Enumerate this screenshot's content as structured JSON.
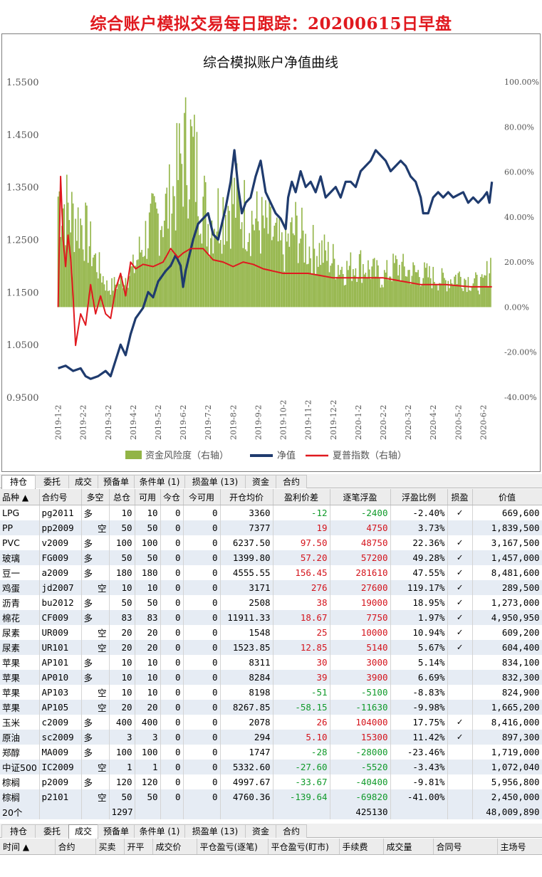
{
  "page_title": "综合账户模拟交易每日跟踪：20200615日早盘",
  "chart_data": {
    "type": "combo",
    "title": "综合模拟账户净值曲线",
    "left_axis": {
      "ticks": [
        "1.5500",
        "1.4500",
        "1.3500",
        "1.2500",
        "1.1500",
        "1.0500",
        "0.9500"
      ],
      "min": 0.95,
      "max": 1.55
    },
    "right_axis": {
      "ticks": [
        "100.00%",
        "80.00%",
        "60.00%",
        "40.00%",
        "20.00%",
        "0.00%",
        "-20.00%",
        "-40.00%"
      ],
      "min": -40,
      "max": 100
    },
    "x_labels": [
      "2019-1-2",
      "2019-2-2",
      "2019-3-2",
      "2019-4-2",
      "2019-5-2",
      "2019-6-2",
      "2019-7-2",
      "2019-8-2",
      "2019-9-2",
      "2019-10-2",
      "2019-11-2",
      "2019-12-2",
      "2020-1-2",
      "2020-2-2",
      "2020-3-2",
      "2020-4-2",
      "2020-5-2",
      "2020-6-2"
    ],
    "legend": [
      "资金风险度（右轴）",
      "净值",
      "夏普指数（右轴）"
    ],
    "series": [
      {
        "name": "净值",
        "axis": "left",
        "color": "#1f3b6e",
        "points": [
          [
            0,
            1.005
          ],
          [
            0.3,
            1.01
          ],
          [
            0.6,
            1.0
          ],
          [
            0.9,
            1.005
          ],
          [
            1.1,
            0.99
          ],
          [
            1.3,
            0.985
          ],
          [
            1.6,
            0.99
          ],
          [
            1.9,
            1.0
          ],
          [
            2.1,
            0.99
          ],
          [
            2.3,
            1.02
          ],
          [
            2.5,
            1.05
          ],
          [
            2.7,
            1.03
          ],
          [
            2.9,
            1.07
          ],
          [
            3.1,
            1.1
          ],
          [
            3.4,
            1.12
          ],
          [
            3.6,
            1.15
          ],
          [
            3.8,
            1.14
          ],
          [
            4.0,
            1.17
          ],
          [
            4.3,
            1.19
          ],
          [
            4.5,
            1.2
          ],
          [
            4.7,
            1.22
          ],
          [
            4.9,
            1.2
          ],
          [
            5.0,
            1.16
          ],
          [
            5.1,
            1.19
          ],
          [
            5.2,
            1.21
          ],
          [
            5.4,
            1.25
          ],
          [
            5.6,
            1.28
          ],
          [
            5.8,
            1.29
          ],
          [
            6.0,
            1.3
          ],
          [
            6.2,
            1.26
          ],
          [
            6.4,
            1.25
          ],
          [
            6.5,
            1.27
          ],
          [
            6.7,
            1.31
          ],
          [
            6.9,
            1.36
          ],
          [
            7.05,
            1.42
          ],
          [
            7.2,
            1.35
          ],
          [
            7.35,
            1.3
          ],
          [
            7.5,
            1.32
          ],
          [
            7.7,
            1.33
          ],
          [
            7.9,
            1.37
          ],
          [
            8.1,
            1.4
          ],
          [
            8.3,
            1.34
          ],
          [
            8.5,
            1.32
          ],
          [
            8.7,
            1.3
          ],
          [
            8.9,
            1.29
          ],
          [
            9.1,
            1.27
          ],
          [
            9.2,
            1.33
          ],
          [
            9.35,
            1.36
          ],
          [
            9.5,
            1.34
          ],
          [
            9.7,
            1.38
          ],
          [
            9.9,
            1.35
          ],
          [
            10.1,
            1.36
          ],
          [
            10.3,
            1.34
          ],
          [
            10.5,
            1.37
          ],
          [
            10.7,
            1.33
          ],
          [
            10.9,
            1.34
          ],
          [
            11.1,
            1.35
          ],
          [
            11.3,
            1.33
          ],
          [
            11.5,
            1.36
          ],
          [
            11.7,
            1.36
          ],
          [
            11.9,
            1.35
          ],
          [
            12.1,
            1.38
          ],
          [
            12.3,
            1.39
          ],
          [
            12.5,
            1.4
          ],
          [
            12.7,
            1.42
          ],
          [
            12.9,
            1.41
          ],
          [
            13.1,
            1.4
          ],
          [
            13.3,
            1.38
          ],
          [
            13.5,
            1.39
          ],
          [
            13.7,
            1.4
          ],
          [
            13.9,
            1.39
          ],
          [
            14.1,
            1.37
          ],
          [
            14.3,
            1.36
          ],
          [
            14.5,
            1.33
          ],
          [
            14.6,
            1.3
          ],
          [
            14.8,
            1.3
          ],
          [
            15.0,
            1.33
          ],
          [
            15.2,
            1.34
          ],
          [
            15.4,
            1.33
          ],
          [
            15.6,
            1.34
          ],
          [
            15.8,
            1.33
          ],
          [
            16.0,
            1.335
          ],
          [
            16.2,
            1.34
          ],
          [
            16.4,
            1.32
          ],
          [
            16.6,
            1.33
          ],
          [
            16.8,
            1.32
          ],
          [
            17.0,
            1.33
          ],
          [
            17.15,
            1.34
          ],
          [
            17.25,
            1.32
          ],
          [
            17.35,
            1.36
          ]
        ]
      },
      {
        "name": "夏普指数（右轴）",
        "axis": "right",
        "color": "#e0191f",
        "points": [
          [
            0,
            0
          ],
          [
            0.1,
            58
          ],
          [
            0.2,
            30
          ],
          [
            0.3,
            18
          ],
          [
            0.4,
            32
          ],
          [
            0.5,
            22
          ],
          [
            0.6,
            5
          ],
          [
            0.7,
            -17
          ],
          [
            0.9,
            -3
          ],
          [
            1.1,
            -8
          ],
          [
            1.3,
            10
          ],
          [
            1.5,
            -3
          ],
          [
            1.7,
            5
          ],
          [
            1.9,
            -3
          ],
          [
            2.1,
            -5
          ],
          [
            2.3,
            8
          ],
          [
            2.5,
            15
          ],
          [
            2.7,
            5
          ],
          [
            2.9,
            20
          ],
          [
            3.1,
            17
          ],
          [
            3.4,
            19
          ],
          [
            3.8,
            18
          ],
          [
            4.2,
            20
          ],
          [
            4.5,
            26
          ],
          [
            4.8,
            22
          ],
          [
            5.0,
            24
          ],
          [
            5.3,
            26
          ],
          [
            5.8,
            26
          ],
          [
            6.2,
            21
          ],
          [
            6.6,
            20
          ],
          [
            7.0,
            18
          ],
          [
            7.4,
            20
          ],
          [
            7.8,
            19
          ],
          [
            8.2,
            17
          ],
          [
            8.6,
            16
          ],
          [
            9.0,
            15
          ],
          [
            9.5,
            15
          ],
          [
            10,
            15
          ],
          [
            10.5,
            14
          ],
          [
            11,
            13
          ],
          [
            11.5,
            13
          ],
          [
            12,
            13
          ],
          [
            12.5,
            13
          ],
          [
            13,
            13
          ],
          [
            13.5,
            12
          ],
          [
            14,
            11
          ],
          [
            14.5,
            10
          ],
          [
            15,
            10
          ],
          [
            15.5,
            10
          ],
          [
            16,
            9.5
          ],
          [
            16.5,
            9
          ],
          [
            17,
            9
          ],
          [
            17.35,
            9
          ]
        ]
      }
    ],
    "risk_bars": {
      "name": "资金风险度（右轴）",
      "axis": "right",
      "color": "#92b446",
      "profile": [
        [
          0,
          60
        ],
        [
          0.5,
          50
        ],
        [
          1,
          44
        ],
        [
          1.5,
          25
        ],
        [
          2,
          10
        ],
        [
          2.5,
          14
        ],
        [
          3,
          20
        ],
        [
          3.5,
          38
        ],
        [
          4,
          48
        ],
        [
          4.5,
          55
        ],
        [
          5,
          82
        ],
        [
          5.3,
          85
        ],
        [
          5.6,
          70
        ],
        [
          6,
          45
        ],
        [
          6.5,
          52
        ],
        [
          7,
          58
        ],
        [
          7.5,
          50
        ],
        [
          8,
          45
        ],
        [
          8.5,
          40
        ],
        [
          9,
          30
        ],
        [
          9.5,
          42
        ],
        [
          10,
          32
        ],
        [
          10.5,
          30
        ],
        [
          11,
          25
        ],
        [
          11.5,
          20
        ],
        [
          12,
          24
        ],
        [
          12.5,
          20
        ],
        [
          13,
          16
        ],
        [
          13.5,
          22
        ],
        [
          14,
          19
        ],
        [
          14.5,
          18
        ],
        [
          15,
          16
        ],
        [
          15.5,
          14
        ],
        [
          16,
          17
        ],
        [
          16.5,
          14
        ],
        [
          17,
          12
        ],
        [
          17.35,
          26
        ]
      ]
    }
  },
  "tabs_top": [
    {
      "label": "持仓",
      "active": true
    },
    {
      "label": "委托",
      "active": false
    },
    {
      "label": "成交",
      "active": false
    },
    {
      "label": "预备单",
      "active": false
    },
    {
      "label": "条件单 (1)",
      "active": false
    },
    {
      "label": "损盈单 (13)",
      "active": false
    },
    {
      "label": "资金",
      "active": false
    },
    {
      "label": "合约",
      "active": false
    }
  ],
  "positions": {
    "headers": [
      "品种",
      "合约号",
      "多空",
      "总仓",
      "可用",
      "今仓",
      "今可用",
      "开仓均价",
      "盈利价差",
      "逐笔浮盈",
      "浮盈比例",
      "损盈",
      "价值"
    ],
    "rows": [
      {
        "name": "LPG",
        "code": "pg2011",
        "dir": "多",
        "total": "10",
        "avail": "10",
        "today": "0",
        "today_avail": "0",
        "price": "3360",
        "spread": "-12",
        "pnl": "-2400",
        "ratio": "-2.40%",
        "sl": "✓",
        "value": "669,600"
      },
      {
        "name": "PP",
        "code": "pp2009",
        "dir": "空",
        "total": "50",
        "avail": "50",
        "today": "0",
        "today_avail": "0",
        "price": "7377",
        "spread": "19",
        "pnl": "4750",
        "ratio": "3.73%",
        "sl": "",
        "value": "1,839,500"
      },
      {
        "name": "PVC",
        "code": "v2009",
        "dir": "多",
        "total": "100",
        "avail": "100",
        "today": "0",
        "today_avail": "0",
        "price": "6237.50",
        "spread": "97.50",
        "pnl": "48750",
        "ratio": "22.36%",
        "sl": "✓",
        "value": "3,167,500"
      },
      {
        "name": "玻璃",
        "code": "FG009",
        "dir": "多",
        "total": "50",
        "avail": "50",
        "today": "0",
        "today_avail": "0",
        "price": "1399.80",
        "spread": "57.20",
        "pnl": "57200",
        "ratio": "49.28%",
        "sl": "✓",
        "value": "1,457,000"
      },
      {
        "name": "豆一",
        "code": "a2009",
        "dir": "多",
        "total": "180",
        "avail": "180",
        "today": "0",
        "today_avail": "0",
        "price": "4555.55",
        "spread": "156.45",
        "pnl": "281610",
        "ratio": "47.55%",
        "sl": "✓",
        "value": "8,481,600"
      },
      {
        "name": "鸡蛋",
        "code": "jd2007",
        "dir": "空",
        "total": "10",
        "avail": "10",
        "today": "0",
        "today_avail": "0",
        "price": "3171",
        "spread": "276",
        "pnl": "27600",
        "ratio": "119.17%",
        "sl": "✓",
        "value": "289,500"
      },
      {
        "name": "沥青",
        "code": "bu2012",
        "dir": "多",
        "total": "50",
        "avail": "50",
        "today": "0",
        "today_avail": "0",
        "price": "2508",
        "spread": "38",
        "pnl": "19000",
        "ratio": "18.95%",
        "sl": "✓",
        "value": "1,273,000"
      },
      {
        "name": "棉花",
        "code": "CF009",
        "dir": "多",
        "total": "83",
        "avail": "83",
        "today": "0",
        "today_avail": "0",
        "price": "11911.33",
        "spread": "18.67",
        "pnl": "7750",
        "ratio": "1.97%",
        "sl": "✓",
        "value": "4,950,950"
      },
      {
        "name": "尿素",
        "code": "UR009",
        "dir": "空",
        "total": "20",
        "avail": "20",
        "today": "0",
        "today_avail": "0",
        "price": "1548",
        "spread": "25",
        "pnl": "10000",
        "ratio": "10.94%",
        "sl": "✓",
        "value": "609,200"
      },
      {
        "name": "尿素",
        "code": "UR101",
        "dir": "空",
        "total": "20",
        "avail": "20",
        "today": "0",
        "today_avail": "0",
        "price": "1523.85",
        "spread": "12.85",
        "pnl": "5140",
        "ratio": "5.67%",
        "sl": "✓",
        "value": "604,400"
      },
      {
        "name": "苹果",
        "code": "AP101",
        "dir": "多",
        "total": "10",
        "avail": "10",
        "today": "0",
        "today_avail": "0",
        "price": "8311",
        "spread": "30",
        "pnl": "3000",
        "ratio": "5.14%",
        "sl": "",
        "value": "834,100"
      },
      {
        "name": "苹果",
        "code": "AP010",
        "dir": "多",
        "total": "10",
        "avail": "10",
        "today": "0",
        "today_avail": "0",
        "price": "8284",
        "spread": "39",
        "pnl": "3900",
        "ratio": "6.69%",
        "sl": "",
        "value": "832,300"
      },
      {
        "name": "苹果",
        "code": "AP103",
        "dir": "空",
        "total": "10",
        "avail": "10",
        "today": "0",
        "today_avail": "0",
        "price": "8198",
        "spread": "-51",
        "pnl": "-5100",
        "ratio": "-8.83%",
        "sl": "",
        "value": "824,900"
      },
      {
        "name": "苹果",
        "code": "AP105",
        "dir": "空",
        "total": "20",
        "avail": "20",
        "today": "0",
        "today_avail": "0",
        "price": "8267.85",
        "spread": "-58.15",
        "pnl": "-11630",
        "ratio": "-9.98%",
        "sl": "",
        "value": "1,665,200"
      },
      {
        "name": "玉米",
        "code": "c2009",
        "dir": "多",
        "total": "400",
        "avail": "400",
        "today": "0",
        "today_avail": "0",
        "price": "2078",
        "spread": "26",
        "pnl": "104000",
        "ratio": "17.75%",
        "sl": "✓",
        "value": "8,416,000"
      },
      {
        "name": "原油",
        "code": "sc2009",
        "dir": "多",
        "total": "3",
        "avail": "3",
        "today": "0",
        "today_avail": "0",
        "price": "294",
        "spread": "5.10",
        "pnl": "15300",
        "ratio": "11.42%",
        "sl": "✓",
        "value": "897,300"
      },
      {
        "name": "郑醇",
        "code": "MA009",
        "dir": "多",
        "total": "100",
        "avail": "100",
        "today": "0",
        "today_avail": "0",
        "price": "1747",
        "spread": "-28",
        "pnl": "-28000",
        "ratio": "-23.46%",
        "sl": "",
        "value": "1,719,000"
      },
      {
        "name": "中证500",
        "code": "IC2009",
        "dir": "空",
        "total": "1",
        "avail": "1",
        "today": "0",
        "today_avail": "0",
        "price": "5332.60",
        "spread": "-27.60",
        "pnl": "-5520",
        "ratio": "-3.43%",
        "sl": "",
        "value": "1,072,040"
      },
      {
        "name": "棕榈",
        "code": "p2009",
        "dir": "多",
        "total": "120",
        "avail": "120",
        "today": "0",
        "today_avail": "0",
        "price": "4997.67",
        "spread": "-33.67",
        "pnl": "-40400",
        "ratio": "-9.81%",
        "sl": "",
        "value": "5,956,800"
      },
      {
        "name": "棕榈",
        "code": "p2101",
        "dir": "空",
        "total": "50",
        "avail": "50",
        "today": "0",
        "today_avail": "0",
        "price": "4760.36",
        "spread": "-139.64",
        "pnl": "-69820",
        "ratio": "-41.00%",
        "sl": "",
        "value": "2,450,000"
      }
    ],
    "total": {
      "count": "20个",
      "total": "1297",
      "pnl": "425130",
      "value": "48,009,890"
    }
  },
  "tabs_bottom": [
    {
      "label": "持仓",
      "active": false
    },
    {
      "label": "委托",
      "active": false
    },
    {
      "label": "成交",
      "active": true
    },
    {
      "label": "预备单",
      "active": false
    },
    {
      "label": "条件单 (1)",
      "active": false
    },
    {
      "label": "损盈单 (13)",
      "active": false
    },
    {
      "label": "资金",
      "active": false
    },
    {
      "label": "合约",
      "active": false
    }
  ],
  "trades": {
    "headers": [
      "时间 ▲",
      "合约",
      "买卖",
      "开平",
      "成交价",
      "平仓盈亏(逐笔)",
      "平仓盈亏(盯市)",
      "手续费",
      "成交量",
      "合同号",
      "主场号"
    ]
  }
}
